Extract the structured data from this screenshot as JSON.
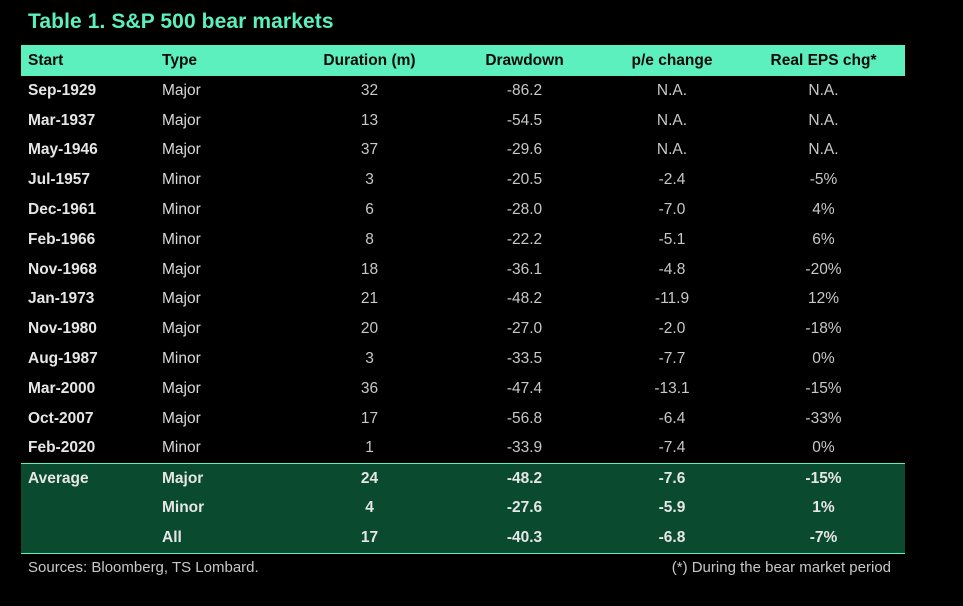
{
  "title": "Table 1. S&P 500 bear markets",
  "colors": {
    "header_bg": "#5cf0bf",
    "footer_bg": "#0a4a2f",
    "background": "#000000"
  },
  "chart_data": {
    "type": "table",
    "title": "Table 1. S&P 500 bear markets",
    "columns": [
      "Start",
      "Type",
      "Duration (m)",
      "Drawdown",
      "p/e change",
      "Real EPS chg*"
    ],
    "rows": [
      [
        "Sep-1929",
        "Major",
        "32",
        "-86.2",
        "N.A.",
        "N.A."
      ],
      [
        "Mar-1937",
        "Major",
        "13",
        "-54.5",
        "N.A.",
        "N.A."
      ],
      [
        "May-1946",
        "Major",
        "37",
        "-29.6",
        "N.A.",
        "N.A."
      ],
      [
        "Jul-1957",
        "Minor",
        "3",
        "-20.5",
        "-2.4",
        "-5%"
      ],
      [
        "Dec-1961",
        "Minor",
        "6",
        "-28.0",
        "-7.0",
        "4%"
      ],
      [
        "Feb-1966",
        "Minor",
        "8",
        "-22.2",
        "-5.1",
        "6%"
      ],
      [
        "Nov-1968",
        "Major",
        "18",
        "-36.1",
        "-4.8",
        "-20%"
      ],
      [
        "Jan-1973",
        "Major",
        "21",
        "-48.2",
        "-11.9",
        "12%"
      ],
      [
        "Nov-1980",
        "Major",
        "20",
        "-27.0",
        "-2.0",
        "-18%"
      ],
      [
        "Aug-1987",
        "Minor",
        "3",
        "-33.5",
        "-7.7",
        "0%"
      ],
      [
        "Mar-2000",
        "Major",
        "36",
        "-47.4",
        "-13.1",
        "-15%"
      ],
      [
        "Oct-2007",
        "Major",
        "17",
        "-56.8",
        "-6.4",
        "-33%"
      ],
      [
        "Feb-2020",
        "Minor",
        "1",
        "-33.9",
        "-7.4",
        "0%"
      ]
    ],
    "summary": [
      [
        "Average",
        "Major",
        "24",
        "-48.2",
        "-7.6",
        "-15%"
      ],
      [
        "",
        "Minor",
        "4",
        "-27.6",
        "-5.9",
        "1%"
      ],
      [
        "",
        "All",
        "17",
        "-40.3",
        "-6.8",
        "-7%"
      ]
    ]
  },
  "sources": "Sources: Bloomberg, TS Lombard.",
  "footnote": "(*) During the bear market period"
}
